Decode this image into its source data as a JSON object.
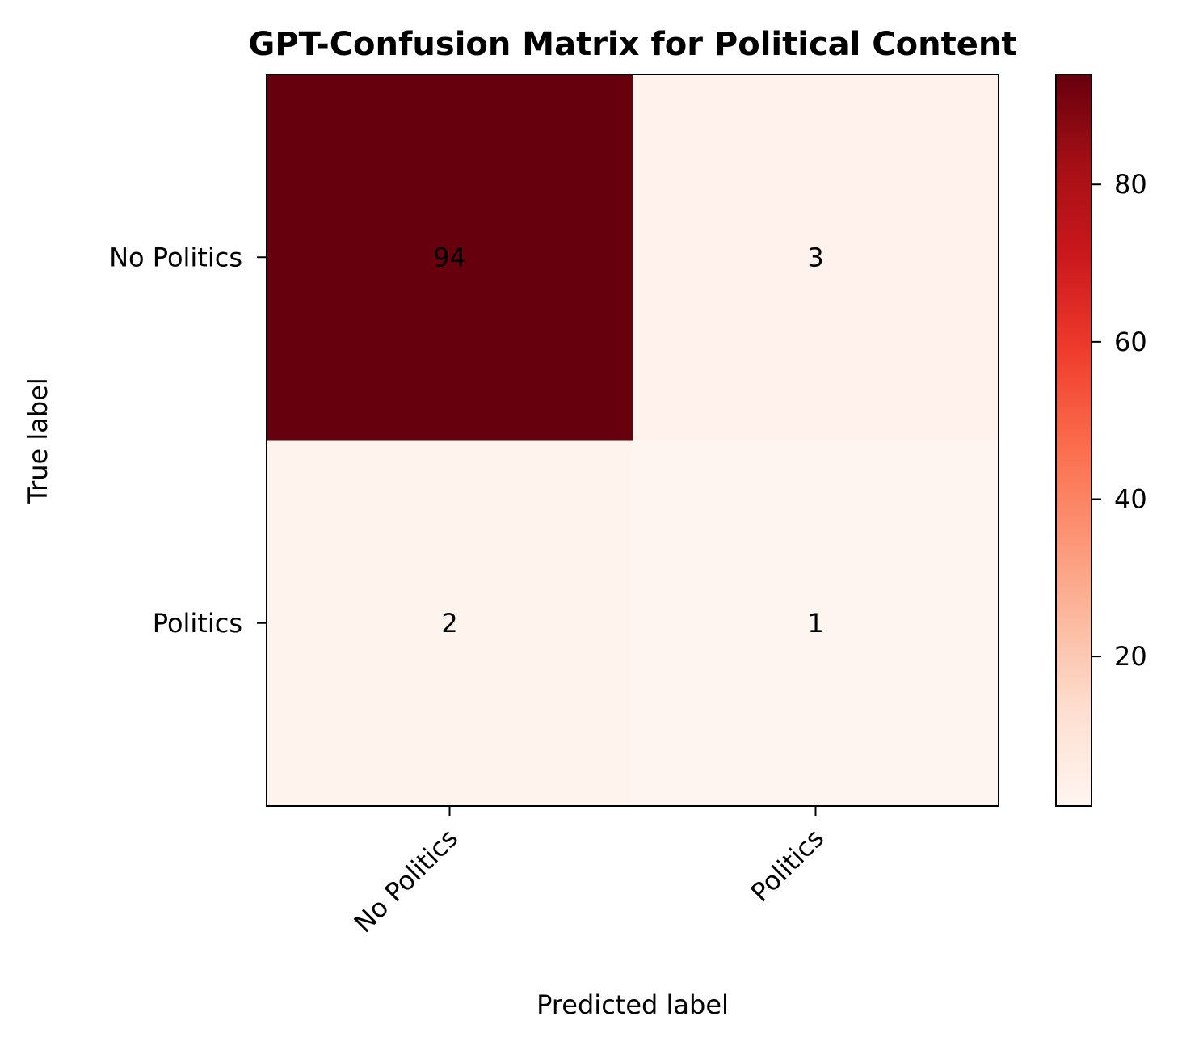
{
  "chart_data": {
    "type": "heatmap",
    "title": "GPT-Confusion Matrix for Political Content",
    "xlabel": "Predicted label",
    "ylabel": "True label",
    "x_categories": [
      "No Politics",
      "Politics"
    ],
    "y_categories": [
      "No Politics",
      "Politics"
    ],
    "values": [
      [
        94,
        3
      ],
      [
        2,
        1
      ]
    ],
    "colormap": "Reds",
    "colorbar": {
      "min": 1,
      "max": 94,
      "ticks": [
        20,
        40,
        60,
        80
      ],
      "tick_labels": [
        "20",
        "40",
        "60",
        "80"
      ]
    },
    "colors": {
      "low": "#fff5f0",
      "high": "#67000d",
      "cell_text": "#000000"
    }
  }
}
